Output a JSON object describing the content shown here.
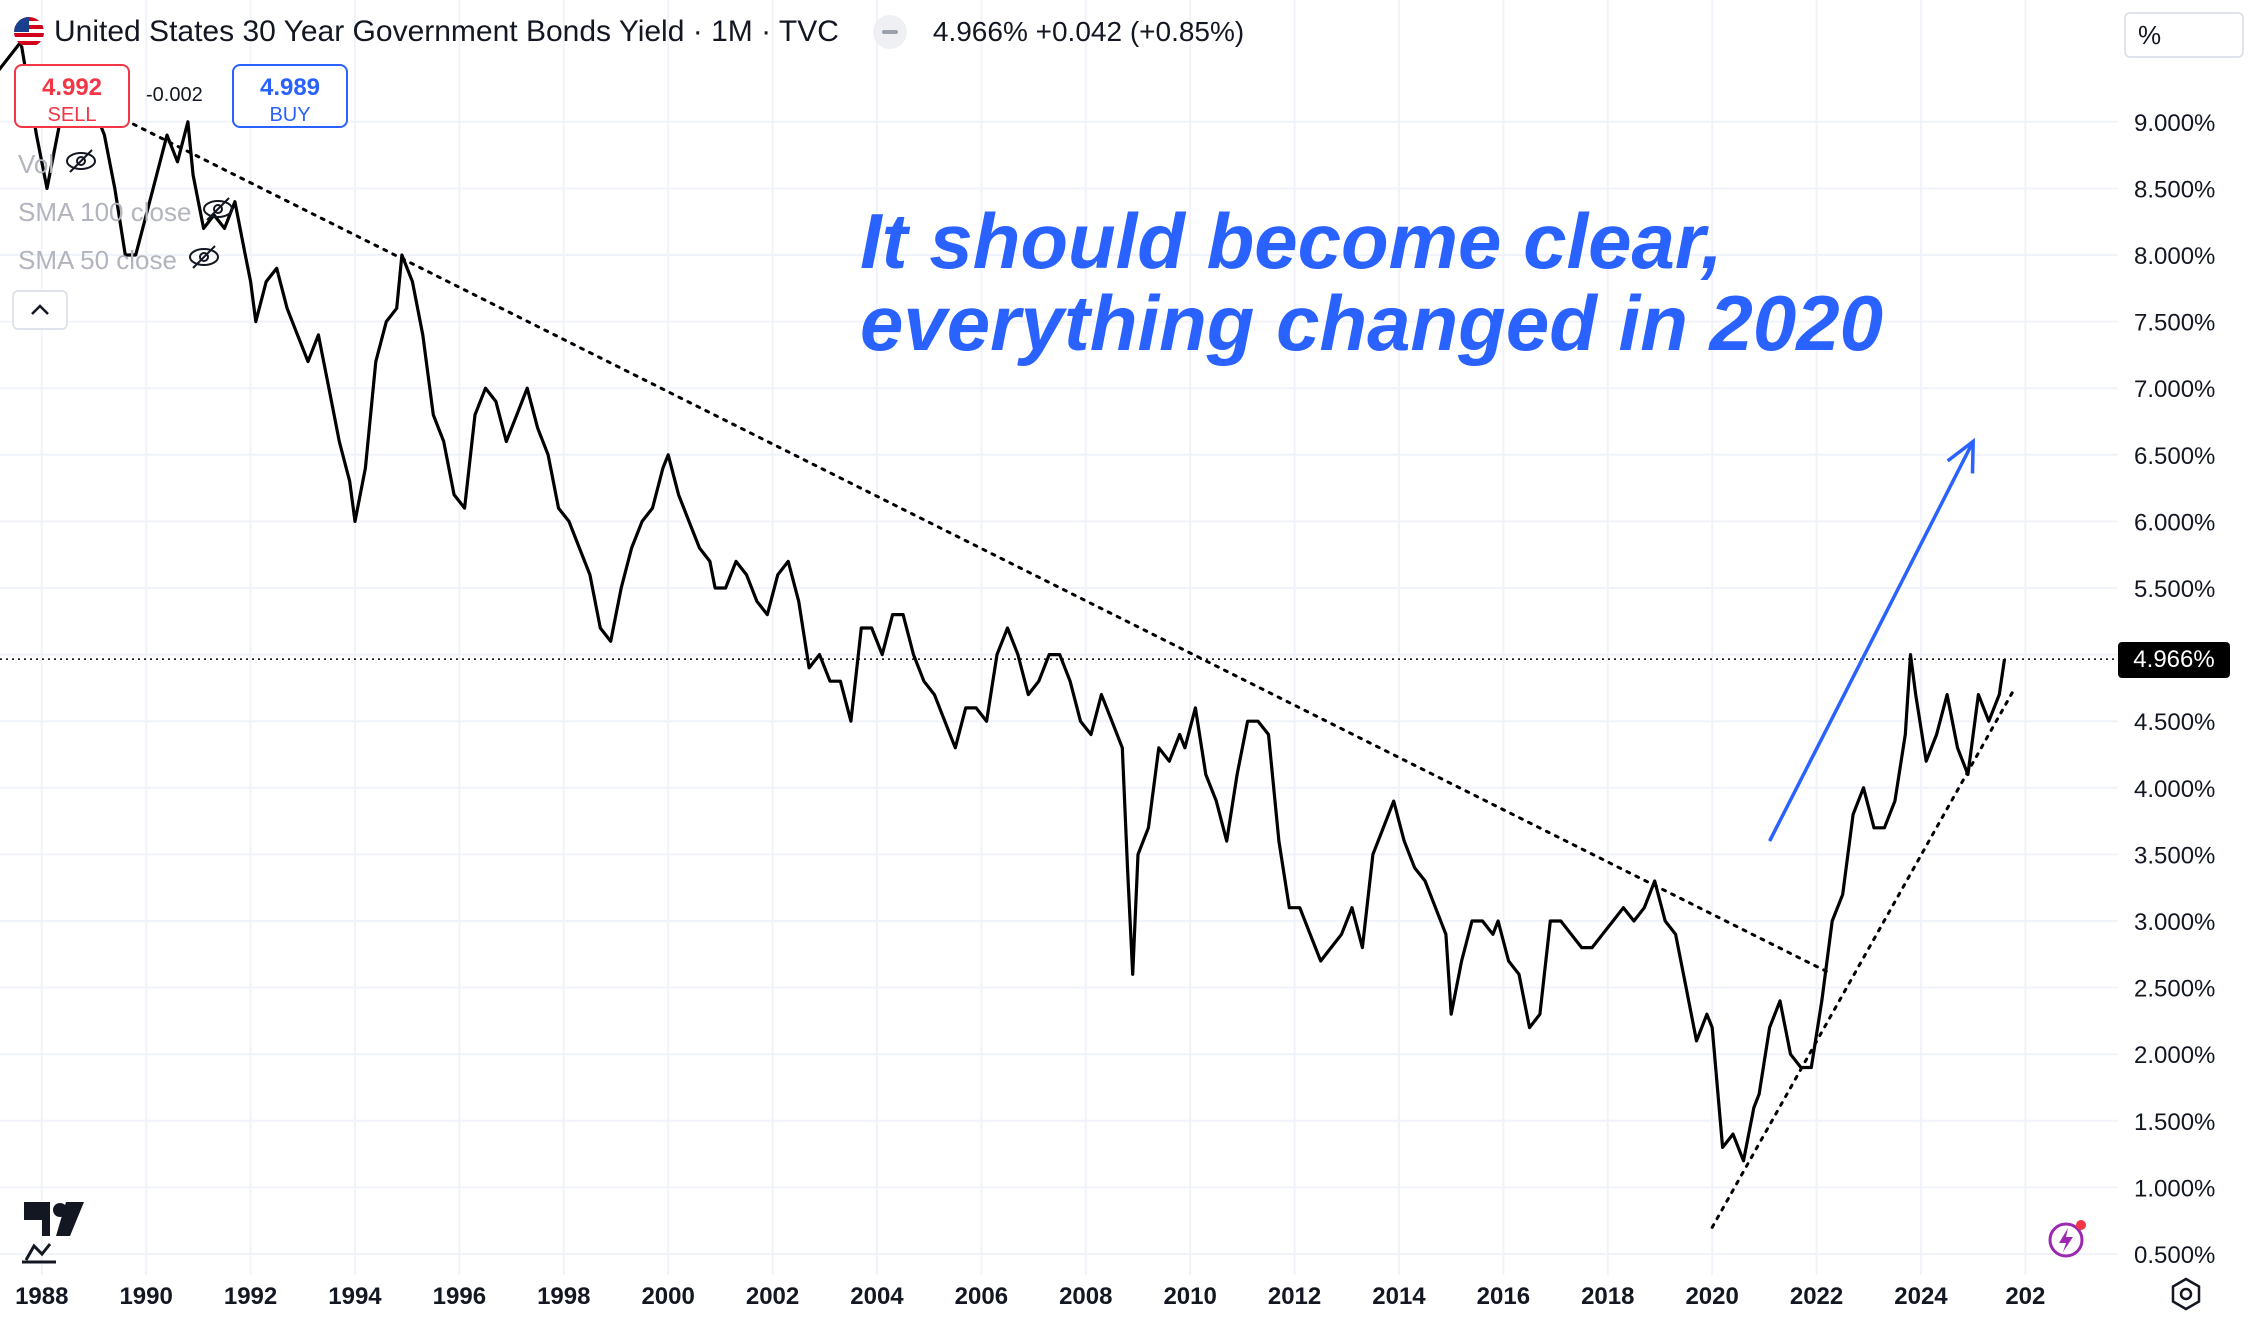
{
  "header": {
    "title": "United States 30 Year Government Bonds Yield · 1M · TVC",
    "quote": "4.966%  +0.042 (+0.85%)"
  },
  "trade": {
    "sell_price": "4.992",
    "sell_label": "SELL",
    "buy_price": "4.989",
    "buy_label": "BUY",
    "spread": "-0.002"
  },
  "indicators": {
    "vol": "Vol",
    "sma100": "SMA 100 close",
    "sma50": "SMA 50 close"
  },
  "annotation": {
    "line1": "It should become clear,",
    "line2": "everything changed in 2020"
  },
  "price_axis": {
    "unit": "%",
    "last_price_label": "4.966%"
  },
  "icons": {
    "flag": "us-flag-icon",
    "eye": "eye-slash-icon",
    "collapse": "chevron-up-icon",
    "logo": "tradingview-logo-icon",
    "bolt": "lightning-icon",
    "settings": "gear-icon"
  },
  "colors": {
    "line": "#000000",
    "annotation": "#2962ff",
    "sell": "#f23645",
    "buy": "#2962ff",
    "grid": "#f0f3fa",
    "axis_text": "#131722"
  },
  "chart_data": {
    "type": "line",
    "title": "United States 30 Year Government Bonds Yield · 1M · TVC",
    "ylabel": "%",
    "ylim": [
      0.45,
      9.35
    ],
    "xlim": [
      1987.2,
      2026
    ],
    "grid": true,
    "y_ticks": [
      "9.000%",
      "8.500%",
      "8.000%",
      "7.500%",
      "7.000%",
      "6.500%",
      "6.000%",
      "5.500%",
      "5.000%",
      "4.500%",
      "4.000%",
      "3.500%",
      "3.000%",
      "2.500%",
      "2.000%",
      "1.500%",
      "1.000%",
      "0.500%"
    ],
    "x_ticks": [
      "1988",
      "1990",
      "1992",
      "1994",
      "1996",
      "1998",
      "2000",
      "2002",
      "2004",
      "2006",
      "2008",
      "2010",
      "2012",
      "2014",
      "2016",
      "2018",
      "2020",
      "2022",
      "2024",
      "202"
    ],
    "last_value": 4.966,
    "series": [
      {
        "values": [
          [
            1987.0,
            9.3
          ],
          [
            1987.6,
            9.6
          ],
          [
            1987.9,
            8.9
          ],
          [
            1988.1,
            8.5
          ],
          [
            1988.4,
            9.1
          ],
          [
            1988.6,
            9.0
          ],
          [
            1988.8,
            9.3
          ],
          [
            1989.0,
            9.1
          ],
          [
            1989.2,
            8.9
          ],
          [
            1989.4,
            8.5
          ],
          [
            1989.6,
            8.0
          ],
          [
            1989.8,
            8.0
          ],
          [
            1990.0,
            8.3
          ],
          [
            1990.2,
            8.6
          ],
          [
            1990.4,
            8.9
          ],
          [
            1990.6,
            8.7
          ],
          [
            1990.8,
            9.0
          ],
          [
            1990.9,
            8.6
          ],
          [
            1991.1,
            8.2
          ],
          [
            1991.3,
            8.3
          ],
          [
            1991.5,
            8.2
          ],
          [
            1991.7,
            8.4
          ],
          [
            1991.9,
            8.0
          ],
          [
            1992.0,
            7.8
          ],
          [
            1992.1,
            7.5
          ],
          [
            1992.3,
            7.8
          ],
          [
            1992.5,
            7.9
          ],
          [
            1992.7,
            7.6
          ],
          [
            1992.9,
            7.4
          ],
          [
            1993.1,
            7.2
          ],
          [
            1993.3,
            7.4
          ],
          [
            1993.5,
            7.0
          ],
          [
            1993.7,
            6.6
          ],
          [
            1993.9,
            6.3
          ],
          [
            1994.0,
            6.0
          ],
          [
            1994.2,
            6.4
          ],
          [
            1994.4,
            7.2
          ],
          [
            1994.6,
            7.5
          ],
          [
            1994.8,
            7.6
          ],
          [
            1994.9,
            8.0
          ],
          [
            1995.1,
            7.8
          ],
          [
            1995.3,
            7.4
          ],
          [
            1995.5,
            6.8
          ],
          [
            1995.7,
            6.6
          ],
          [
            1995.9,
            6.2
          ],
          [
            1996.1,
            6.1
          ],
          [
            1996.3,
            6.8
          ],
          [
            1996.5,
            7.0
          ],
          [
            1996.7,
            6.9
          ],
          [
            1996.9,
            6.6
          ],
          [
            1997.1,
            6.8
          ],
          [
            1997.3,
            7.0
          ],
          [
            1997.5,
            6.7
          ],
          [
            1997.7,
            6.5
          ],
          [
            1997.9,
            6.1
          ],
          [
            1998.1,
            6.0
          ],
          [
            1998.3,
            5.8
          ],
          [
            1998.5,
            5.6
          ],
          [
            1998.7,
            5.2
          ],
          [
            1998.9,
            5.1
          ],
          [
            1999.1,
            5.5
          ],
          [
            1999.3,
            5.8
          ],
          [
            1999.5,
            6.0
          ],
          [
            1999.7,
            6.1
          ],
          [
            1999.9,
            6.4
          ],
          [
            2000.0,
            6.5
          ],
          [
            2000.2,
            6.2
          ],
          [
            2000.4,
            6.0
          ],
          [
            2000.6,
            5.8
          ],
          [
            2000.8,
            5.7
          ],
          [
            2000.9,
            5.5
          ],
          [
            2001.1,
            5.5
          ],
          [
            2001.3,
            5.7
          ],
          [
            2001.5,
            5.6
          ],
          [
            2001.7,
            5.4
          ],
          [
            2001.9,
            5.3
          ],
          [
            2002.1,
            5.6
          ],
          [
            2002.3,
            5.7
          ],
          [
            2002.5,
            5.4
          ],
          [
            2002.7,
            4.9
          ],
          [
            2002.9,
            5.0
          ],
          [
            2003.1,
            4.8
          ],
          [
            2003.3,
            4.8
          ],
          [
            2003.5,
            4.5
          ],
          [
            2003.7,
            5.2
          ],
          [
            2003.9,
            5.2
          ],
          [
            2004.1,
            5.0
          ],
          [
            2004.3,
            5.3
          ],
          [
            2004.5,
            5.3
          ],
          [
            2004.7,
            5.0
          ],
          [
            2004.9,
            4.8
          ],
          [
            2005.1,
            4.7
          ],
          [
            2005.3,
            4.5
          ],
          [
            2005.5,
            4.3
          ],
          [
            2005.7,
            4.6
          ],
          [
            2005.9,
            4.6
          ],
          [
            2006.1,
            4.5
          ],
          [
            2006.3,
            5.0
          ],
          [
            2006.5,
            5.2
          ],
          [
            2006.7,
            5.0
          ],
          [
            2006.9,
            4.7
          ],
          [
            2007.1,
            4.8
          ],
          [
            2007.3,
            5.0
          ],
          [
            2007.5,
            5.0
          ],
          [
            2007.7,
            4.8
          ],
          [
            2007.9,
            4.5
          ],
          [
            2008.1,
            4.4
          ],
          [
            2008.3,
            4.7
          ],
          [
            2008.5,
            4.5
          ],
          [
            2008.7,
            4.3
          ],
          [
            2008.8,
            3.4
          ],
          [
            2008.9,
            2.6
          ],
          [
            2009.0,
            3.5
          ],
          [
            2009.2,
            3.7
          ],
          [
            2009.4,
            4.3
          ],
          [
            2009.6,
            4.2
          ],
          [
            2009.8,
            4.4
          ],
          [
            2009.9,
            4.3
          ],
          [
            2010.1,
            4.6
          ],
          [
            2010.3,
            4.1
          ],
          [
            2010.5,
            3.9
          ],
          [
            2010.7,
            3.6
          ],
          [
            2010.9,
            4.1
          ],
          [
            2011.1,
            4.5
          ],
          [
            2011.3,
            4.5
          ],
          [
            2011.5,
            4.4
          ],
          [
            2011.7,
            3.6
          ],
          [
            2011.9,
            3.1
          ],
          [
            2012.1,
            3.1
          ],
          [
            2012.3,
            2.9
          ],
          [
            2012.5,
            2.7
          ],
          [
            2012.7,
            2.8
          ],
          [
            2012.9,
            2.9
          ],
          [
            2013.1,
            3.1
          ],
          [
            2013.3,
            2.8
          ],
          [
            2013.5,
            3.5
          ],
          [
            2013.7,
            3.7
          ],
          [
            2013.9,
            3.9
          ],
          [
            2014.1,
            3.6
          ],
          [
            2014.3,
            3.4
          ],
          [
            2014.5,
            3.3
          ],
          [
            2014.7,
            3.1
          ],
          [
            2014.9,
            2.9
          ],
          [
            2015.0,
            2.3
          ],
          [
            2015.2,
            2.7
          ],
          [
            2015.4,
            3.0
          ],
          [
            2015.6,
            3.0
          ],
          [
            2015.8,
            2.9
          ],
          [
            2015.9,
            3.0
          ],
          [
            2016.1,
            2.7
          ],
          [
            2016.3,
            2.6
          ],
          [
            2016.5,
            2.2
          ],
          [
            2016.7,
            2.3
          ],
          [
            2016.9,
            3.0
          ],
          [
            2017.1,
            3.0
          ],
          [
            2017.3,
            2.9
          ],
          [
            2017.5,
            2.8
          ],
          [
            2017.7,
            2.8
          ],
          [
            2017.9,
            2.9
          ],
          [
            2018.1,
            3.0
          ],
          [
            2018.3,
            3.1
          ],
          [
            2018.5,
            3.0
          ],
          [
            2018.7,
            3.1
          ],
          [
            2018.9,
            3.3
          ],
          [
            2019.1,
            3.0
          ],
          [
            2019.3,
            2.9
          ],
          [
            2019.5,
            2.5
          ],
          [
            2019.7,
            2.1
          ],
          [
            2019.9,
            2.3
          ],
          [
            2020.0,
            2.2
          ],
          [
            2020.2,
            1.3
          ],
          [
            2020.4,
            1.4
          ],
          [
            2020.6,
            1.2
          ],
          [
            2020.8,
            1.6
          ],
          [
            2020.9,
            1.7
          ],
          [
            2021.1,
            2.2
          ],
          [
            2021.3,
            2.4
          ],
          [
            2021.5,
            2.0
          ],
          [
            2021.7,
            1.9
          ],
          [
            2021.9,
            1.9
          ],
          [
            2022.1,
            2.4
          ],
          [
            2022.3,
            3.0
          ],
          [
            2022.5,
            3.2
          ],
          [
            2022.7,
            3.8
          ],
          [
            2022.9,
            4.0
          ],
          [
            2023.1,
            3.7
          ],
          [
            2023.3,
            3.7
          ],
          [
            2023.5,
            3.9
          ],
          [
            2023.7,
            4.4
          ],
          [
            2023.8,
            5.0
          ],
          [
            2023.9,
            4.7
          ],
          [
            2024.1,
            4.2
          ],
          [
            2024.3,
            4.4
          ],
          [
            2024.5,
            4.7
          ],
          [
            2024.7,
            4.3
          ],
          [
            2024.9,
            4.1
          ],
          [
            2025.1,
            4.7
          ],
          [
            2025.3,
            4.5
          ],
          [
            2025.5,
            4.7
          ],
          [
            2025.6,
            4.966
          ]
        ]
      }
    ]
  }
}
